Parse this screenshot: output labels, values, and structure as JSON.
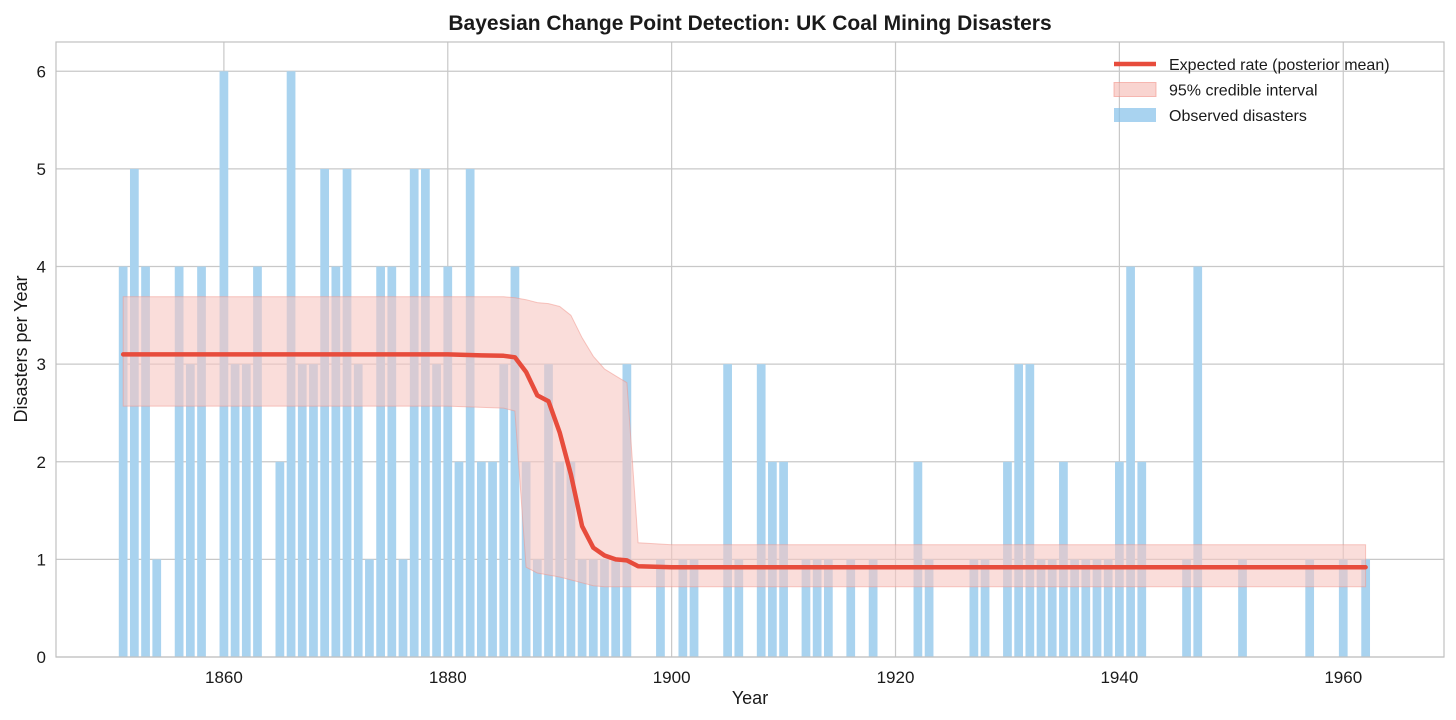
{
  "chart_data": {
    "type": "bar",
    "title": "Bayesian Change Point Detection: UK Coal Mining Disasters",
    "xlabel": "Year",
    "ylabel": "Disasters per Year",
    "xlim": [
      1845,
      1969
    ],
    "ylim": [
      0,
      6.3
    ],
    "grid": true,
    "legend_position": "top-right",
    "xticks": [
      1860,
      1880,
      1900,
      1920,
      1940,
      1960
    ],
    "yticks": [
      0,
      1,
      2,
      3,
      4,
      5,
      6
    ],
    "legend": [
      {
        "label": "Expected rate (posterior mean)",
        "kind": "line",
        "color": "#e74c3c"
      },
      {
        "label": "95% credible interval",
        "kind": "band",
        "color": "#f5b7b1"
      },
      {
        "label": "Observed disasters",
        "kind": "bar",
        "color": "#85c1e9"
      }
    ],
    "colors": {
      "bars": "#a9d3ef",
      "line": "#e74c3c",
      "band": "#f7c6c2"
    },
    "years": [
      1851,
      1852,
      1853,
      1854,
      1855,
      1856,
      1857,
      1858,
      1859,
      1860,
      1861,
      1862,
      1863,
      1864,
      1865,
      1866,
      1867,
      1868,
      1869,
      1870,
      1871,
      1872,
      1873,
      1874,
      1875,
      1876,
      1877,
      1878,
      1879,
      1880,
      1881,
      1882,
      1883,
      1884,
      1885,
      1886,
      1887,
      1888,
      1889,
      1890,
      1891,
      1892,
      1893,
      1894,
      1895,
      1896,
      1897,
      1898,
      1899,
      1900,
      1901,
      1902,
      1903,
      1904,
      1905,
      1906,
      1907,
      1908,
      1909,
      1910,
      1911,
      1912,
      1913,
      1914,
      1915,
      1916,
      1917,
      1918,
      1919,
      1920,
      1921,
      1922,
      1923,
      1924,
      1925,
      1926,
      1927,
      1928,
      1929,
      1930,
      1931,
      1932,
      1933,
      1934,
      1935,
      1936,
      1937,
      1938,
      1939,
      1940,
      1941,
      1942,
      1943,
      1944,
      1945,
      1946,
      1947,
      1948,
      1949,
      1950,
      1951,
      1952,
      1953,
      1954,
      1955,
      1956,
      1957,
      1958,
      1959,
      1960,
      1961,
      1962
    ],
    "series": [
      {
        "name": "Observed disasters",
        "type": "bar",
        "values": [
          4,
          5,
          4,
          1,
          0,
          4,
          3,
          4,
          0,
          6,
          3,
          3,
          4,
          0,
          2,
          6,
          3,
          3,
          5,
          4,
          5,
          3,
          1,
          4,
          4,
          1,
          5,
          5,
          3,
          4,
          2,
          5,
          2,
          2,
          3,
          4,
          2,
          1,
          3,
          2,
          2,
          1,
          1,
          1,
          1,
          3,
          0,
          0,
          1,
          0,
          1,
          1,
          0,
          0,
          3,
          1,
          0,
          3,
          2,
          2,
          0,
          1,
          1,
          1,
          0,
          1,
          0,
          1,
          0,
          0,
          0,
          2,
          1,
          0,
          0,
          0,
          1,
          1,
          0,
          2,
          3,
          3,
          1,
          1,
          2,
          1,
          1,
          1,
          1,
          2,
          4,
          2,
          0,
          0,
          0,
          1,
          4,
          0,
          0,
          0,
          1,
          0,
          0,
          0,
          0,
          0,
          1,
          0,
          0,
          1,
          0,
          1
        ]
      },
      {
        "name": "Expected rate (posterior mean)",
        "type": "line",
        "x": [
          1851,
          1855,
          1860,
          1865,
          1870,
          1875,
          1880,
          1883,
          1885,
          1886,
          1887,
          1888,
          1889,
          1890,
          1891,
          1892,
          1893,
          1894,
          1895,
          1896,
          1897,
          1900,
          1910,
          1920,
          1930,
          1940,
          1950,
          1962
        ],
        "values": [
          3.1,
          3.1,
          3.1,
          3.1,
          3.1,
          3.1,
          3.1,
          3.09,
          3.085,
          3.07,
          2.92,
          2.68,
          2.62,
          2.3,
          1.87,
          1.34,
          1.12,
          1.04,
          1.0,
          0.99,
          0.93,
          0.92,
          0.92,
          0.92,
          0.92,
          0.92,
          0.92,
          0.92
        ]
      },
      {
        "name": "95% credible interval",
        "type": "band",
        "x": [
          1851,
          1860,
          1870,
          1880,
          1885,
          1886,
          1887,
          1888,
          1889,
          1890,
          1891,
          1892,
          1893,
          1894,
          1895,
          1896,
          1897,
          1900,
          1920,
          1940,
          1962
        ],
        "lower": [
          2.57,
          2.57,
          2.57,
          2.57,
          2.55,
          2.52,
          0.92,
          0.86,
          0.84,
          0.82,
          0.79,
          0.76,
          0.73,
          0.72,
          0.72,
          0.72,
          0.72,
          0.72,
          0.72,
          0.72,
          0.72
        ],
        "upper": [
          3.69,
          3.69,
          3.69,
          3.69,
          3.69,
          3.68,
          3.66,
          3.63,
          3.62,
          3.59,
          3.5,
          3.27,
          3.08,
          2.95,
          2.88,
          2.81,
          1.17,
          1.15,
          1.15,
          1.15,
          1.15
        ]
      }
    ]
  }
}
